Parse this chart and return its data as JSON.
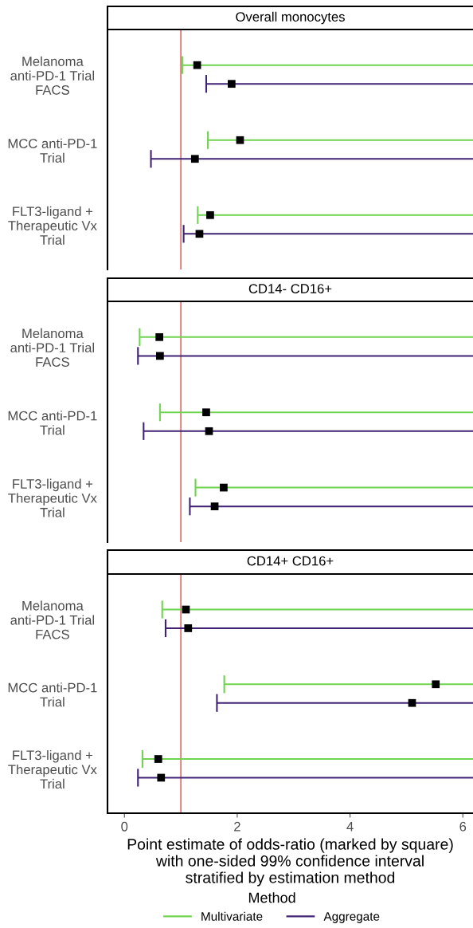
{
  "chart_data": [
    {
      "type": "scatter",
      "orientation": "horizontal",
      "title": "Overall monocytes",
      "categories": [
        "Melanoma\nanti-PD-1 Trial\nFACS",
        "MCC anti-PD-1\nTrial",
        "FLT3-ligand +\nTherapeutic Vx\nTrial"
      ],
      "xlim": [
        -0.3,
        6.18
      ],
      "xticks": [
        0,
        2,
        4,
        6
      ],
      "tick_labels": "y",
      "marker": "square",
      "grid": false,
      "legend": false,
      "ref_lines": [
        {
          "axis": "x",
          "value": 1,
          "color": "#e41a1c"
        }
      ],
      "series": [
        {
          "color": "#6fd34f",
          "colors": [
            "#000000",
            "#000000",
            "#000000"
          ],
          "values": [
            1.29,
            2.05,
            1.52
          ],
          "errors": [
            [
              1.03,
              6.18
            ],
            [
              1.48,
              6.18
            ],
            [
              1.3,
              6.18
            ]
          ]
        },
        {
          "color": "#3f2273",
          "colors": [
            "#000000",
            "#000000",
            "#000000"
          ],
          "values": [
            1.9,
            1.25,
            1.33
          ],
          "errors": [
            [
              1.45,
              6.18
            ],
            [
              0.47,
              6.18
            ],
            [
              1.05,
              6.18
            ]
          ]
        }
      ]
    },
    {
      "type": "scatter",
      "orientation": "horizontal",
      "title": "CD14- CD16+",
      "categories": [
        "Melanoma\nanti-PD-1 Trial\nFACS",
        "MCC anti-PD-1\nTrial",
        "FLT3-ligand +\nTherapeutic Vx\nTrial"
      ],
      "xlim": [
        -0.3,
        6.18
      ],
      "xticks": [
        0,
        2,
        4,
        6
      ],
      "tick_labels": "y",
      "marker": "square",
      "grid": false,
      "legend": false,
      "ref_lines": [
        {
          "axis": "x",
          "value": 1,
          "color": "#e41a1c"
        }
      ],
      "series": [
        {
          "color": "#6fd34f",
          "colors": [
            "#000000",
            "#000000",
            "#000000"
          ],
          "values": [
            0.62,
            1.45,
            1.76
          ],
          "errors": [
            [
              0.27,
              6.18
            ],
            [
              0.63,
              6.18
            ],
            [
              1.26,
              6.18
            ]
          ]
        },
        {
          "color": "#3f2273",
          "colors": [
            "#000000",
            "#000000",
            "#000000"
          ],
          "values": [
            0.63,
            1.5,
            1.6
          ],
          "errors": [
            [
              0.24,
              6.18
            ],
            [
              0.34,
              6.18
            ],
            [
              1.16,
              6.18
            ]
          ]
        }
      ]
    },
    {
      "type": "scatter",
      "orientation": "horizontal",
      "title": "CD14+ CD16+",
      "categories": [
        "Melanoma\nanti-PD-1 Trial\nFACS",
        "MCC anti-PD-1\nTrial",
        "FLT3-ligand +\nTherapeutic Vx\nTrial"
      ],
      "xlim": [
        -0.3,
        6.18
      ],
      "xticks": [
        0,
        2,
        4,
        6
      ],
      "marker": "square",
      "grid": false,
      "legend": "bottom",
      "legend_title": "Method",
      "xlabel": "Point estimate of odds-ratio (marked by square)\nwith one-sided 99% confidence interval\nstratified by estimation method",
      "ref_lines": [
        {
          "axis": "x",
          "value": 1,
          "color": "#e41a1c"
        }
      ],
      "series": [
        {
          "name": "Multivariate",
          "color": "#6fd34f",
          "colors": [
            "#000000",
            "#000000",
            "#000000"
          ],
          "values": [
            1.09,
            5.52,
            0.6
          ],
          "errors": [
            [
              0.67,
              6.18
            ],
            [
              1.77,
              6.18
            ],
            [
              0.32,
              6.18
            ]
          ]
        },
        {
          "name": "Aggregate",
          "color": "#3f2273",
          "colors": [
            "#000000",
            "#000000",
            "#000000"
          ],
          "values": [
            1.13,
            5.1,
            0.65
          ],
          "errors": [
            [
              0.73,
              6.18
            ],
            [
              1.64,
              6.18
            ],
            [
              0.24,
              6.18
            ]
          ]
        }
      ]
    }
  ]
}
